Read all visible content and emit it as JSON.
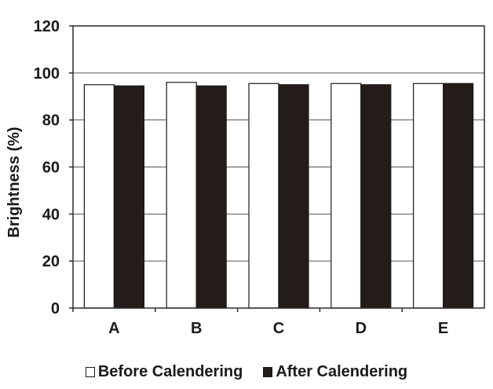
{
  "chart_data": {
    "type": "bar",
    "title": "",
    "xlabel": "",
    "ylabel": "Brightness (%)",
    "categories": [
      "A",
      "B",
      "C",
      "D",
      "E"
    ],
    "series": [
      {
        "name": "Before Calendering",
        "values": [
          95,
          96,
          95.5,
          95.5,
          95.5
        ],
        "color": "#ffffff"
      },
      {
        "name": "After Calendering",
        "values": [
          94.5,
          94.5,
          95,
          95,
          95.5
        ],
        "color": "#231c19"
      }
    ],
    "ylim": [
      0,
      120
    ],
    "yticks": [
      0,
      20,
      40,
      60,
      80,
      100,
      120
    ],
    "grid": true,
    "legend_position": "bottom"
  }
}
